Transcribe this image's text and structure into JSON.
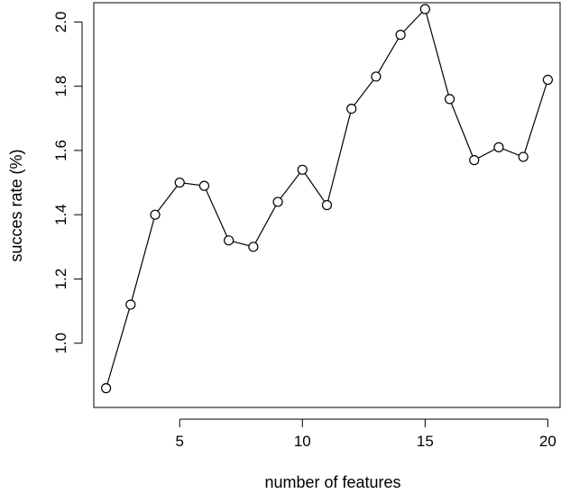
{
  "chart_data": {
    "type": "line",
    "title": "",
    "xlabel": "number of features",
    "ylabel": "succes rate (%)",
    "xlim": [
      1.5,
      20.5
    ],
    "ylim": [
      0.8,
      2.06
    ],
    "x_ticks": [
      5,
      10,
      15,
      20
    ],
    "y_ticks": [
      1.0,
      1.2,
      1.4,
      1.6,
      1.8,
      2.0
    ],
    "x_tick_labels": [
      "5",
      "10",
      "15",
      "20"
    ],
    "y_tick_labels": [
      "1.0",
      "1.2",
      "1.4",
      "1.6",
      "1.8",
      "2.0"
    ],
    "grid": false,
    "marker": "open-circle",
    "line_color": "#000000",
    "series": [
      {
        "x": [
          2,
          3,
          4,
          5,
          6,
          7,
          8,
          9,
          10,
          11,
          12,
          13,
          14,
          15,
          16,
          17,
          18,
          19,
          20
        ],
        "y": [
          0.86,
          1.12,
          1.4,
          1.5,
          1.49,
          1.32,
          1.3,
          1.44,
          1.54,
          1.43,
          1.73,
          1.83,
          1.96,
          2.04,
          1.76,
          1.57,
          1.61,
          1.58,
          1.82
        ]
      }
    ]
  }
}
